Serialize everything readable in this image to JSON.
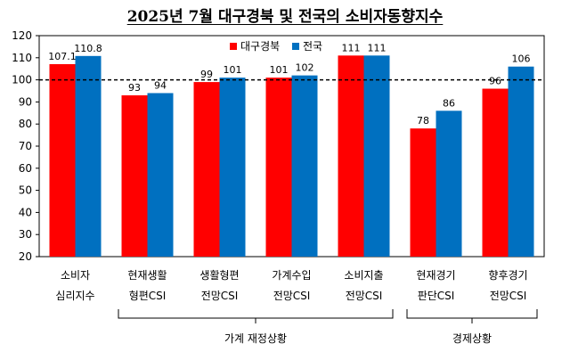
{
  "chart_data": {
    "type": "bar",
    "title": "2025년 7월 대구경북 및 전국의 소비자동향지수",
    "categories": [
      [
        "소비자",
        "심리지수"
      ],
      [
        "현재생활",
        "형편CSI"
      ],
      [
        "생활형편",
        "전망CSI"
      ],
      [
        "가계수입",
        "전망CSI"
      ],
      [
        "소비지출",
        "전망CSI"
      ],
      [
        "현재경기",
        "판단CSI"
      ],
      [
        "향후경기",
        "전망CSI"
      ]
    ],
    "series": [
      {
        "name": "대구경북",
        "color": "#ff0000",
        "values": [
          107.1,
          93,
          99,
          101,
          111,
          78,
          96
        ],
        "labels": [
          "107.1",
          "93",
          "99",
          "101",
          "111",
          "78",
          "96"
        ]
      },
      {
        "name": "전국",
        "color": "#0070c0",
        "values": [
          110.8,
          94,
          101,
          102,
          111,
          86,
          106
        ],
        "labels": [
          "110.8",
          "94",
          "101",
          "102",
          "111",
          "86",
          "106"
        ]
      }
    ],
    "ylim": [
      20,
      120
    ],
    "yticks": [
      20,
      30,
      40,
      50,
      60,
      70,
      80,
      90,
      100,
      110,
      120
    ],
    "reference_line": 100,
    "legend_position": "top-center",
    "groups": [
      {
        "label": "가계 재정상황",
        "from": 1,
        "to": 4
      },
      {
        "label": "경제상황",
        "from": 5,
        "to": 6
      }
    ]
  }
}
